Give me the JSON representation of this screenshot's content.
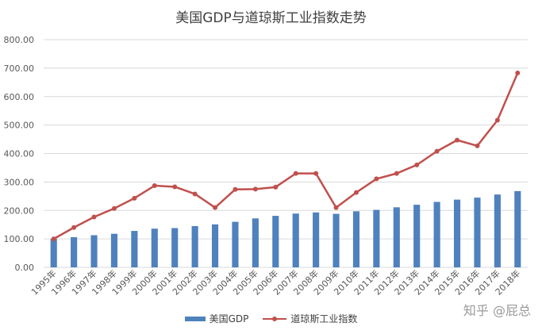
{
  "chart_data": {
    "type": "bar+line",
    "title": "美国GDP与道琼斯工业指数走势",
    "categories": [
      "1995年",
      "1996年",
      "1997年",
      "1998年",
      "1999年",
      "2000年",
      "2001年",
      "2002年",
      "2003年",
      "2004年",
      "2005年",
      "2006年",
      "2007年",
      "2008年",
      "2009年",
      "2010年",
      "2011年",
      "2012年",
      "2013年",
      "2014年",
      "2015年",
      "2016年",
      "2017年",
      "2018年"
    ],
    "series": [
      {
        "name": "美国GDP",
        "type": "bar",
        "color": "#4F81BD",
        "values": [
          100,
          106,
          113,
          118,
          128,
          136,
          138,
          145,
          151,
          160,
          172,
          181,
          189,
          193,
          188,
          197,
          202,
          211,
          220,
          230,
          238,
          245,
          256,
          268
        ]
      },
      {
        "name": "道琼斯工业指数",
        "type": "line",
        "color": "#C0504D",
        "values": [
          100,
          140,
          177,
          207,
          243,
          287,
          283,
          258,
          210,
          274,
          275,
          282,
          330,
          330,
          210,
          263,
          311,
          330,
          360,
          408,
          447,
          427,
          517,
          683
        ]
      }
    ],
    "ylim": [
      0,
      800
    ],
    "yticks": [
      "0.00",
      "100.00",
      "200.00",
      "300.00",
      "400.00",
      "500.00",
      "600.00",
      "700.00",
      "800.00"
    ],
    "grid": true,
    "legend_position": "bottom"
  },
  "watermark": "知乎 @屁总"
}
